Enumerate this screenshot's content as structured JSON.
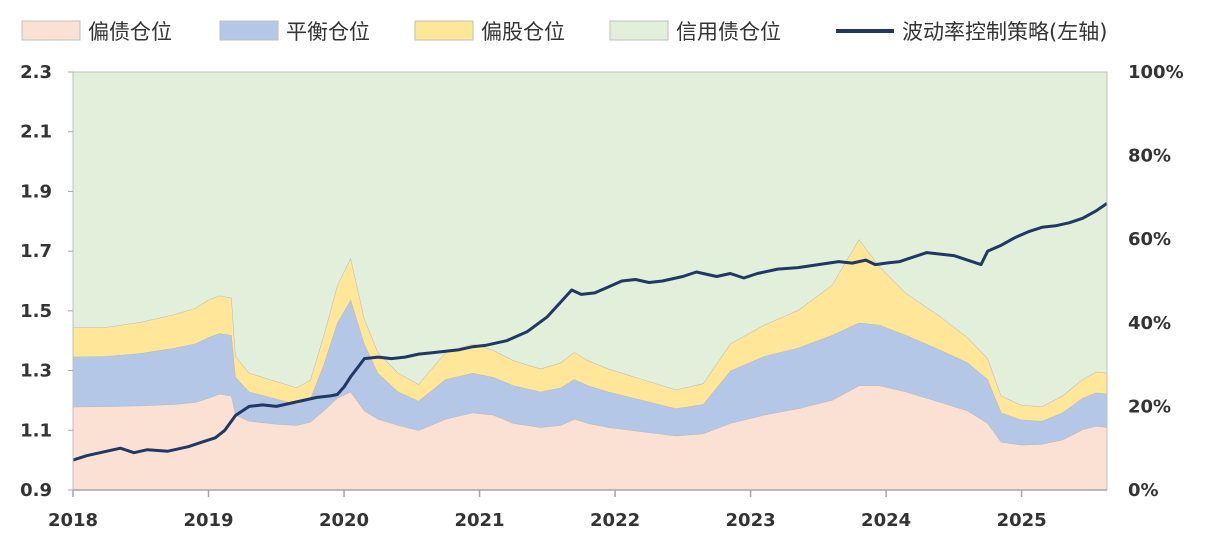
{
  "chart_data": {
    "type": "area",
    "title": "",
    "xlabel": "",
    "ylabel": "",
    "x_range": [
      2018.0,
      2025.63
    ],
    "x_ticks": [
      "2018",
      "2019",
      "2020",
      "2021",
      "2022",
      "2023",
      "2024",
      "2025"
    ],
    "left_axis": {
      "ylim": [
        0.9,
        2.3
      ],
      "ticks": [
        "0.9",
        "1.1",
        "1.3",
        "1.5",
        "1.7",
        "1.9",
        "2.1",
        "2.3"
      ]
    },
    "right_axis": {
      "ylim": [
        0,
        100
      ],
      "ticks": [
        "0%",
        "20%",
        "40%",
        "60%",
        "80%",
        "100%"
      ]
    },
    "grid": false,
    "legend_position": "top",
    "stack_order": [
      "偏债仓位",
      "平衡仓位",
      "偏股仓位",
      "信用债仓位"
    ],
    "area_series": [
      {
        "name": "偏债仓位",
        "color": "#fbe1d3",
        "points": [
          [
            2018.0,
            19.9
          ],
          [
            2018.25,
            20.0
          ],
          [
            2018.5,
            20.2
          ],
          [
            2018.75,
            20.5
          ],
          [
            2018.9,
            21.0
          ],
          [
            2019.0,
            22.0
          ],
          [
            2019.08,
            23.0
          ],
          [
            2019.17,
            22.5
          ],
          [
            2019.2,
            18.0
          ],
          [
            2019.3,
            16.5
          ],
          [
            2019.5,
            15.8
          ],
          [
            2019.65,
            15.5
          ],
          [
            2019.75,
            16.3
          ],
          [
            2019.85,
            19.0
          ],
          [
            2019.95,
            22.0
          ],
          [
            2020.05,
            23.5
          ],
          [
            2020.15,
            19.0
          ],
          [
            2020.25,
            17.0
          ],
          [
            2020.4,
            15.5
          ],
          [
            2020.55,
            14.3
          ],
          [
            2020.75,
            17.0
          ],
          [
            2020.95,
            18.5
          ],
          [
            2021.1,
            18.0
          ],
          [
            2021.25,
            16.0
          ],
          [
            2021.45,
            15.0
          ],
          [
            2021.6,
            15.5
          ],
          [
            2021.7,
            17.0
          ],
          [
            2021.8,
            16.0
          ],
          [
            2021.95,
            15.0
          ],
          [
            2022.2,
            14.0
          ],
          [
            2022.45,
            13.0
          ],
          [
            2022.65,
            13.5
          ],
          [
            2022.85,
            16.0
          ],
          [
            2023.1,
            18.0
          ],
          [
            2023.35,
            19.5
          ],
          [
            2023.6,
            21.5
          ],
          [
            2023.8,
            25.0
          ],
          [
            2023.95,
            25.0
          ],
          [
            2024.15,
            23.5
          ],
          [
            2024.4,
            21.0
          ],
          [
            2024.6,
            19.0
          ],
          [
            2024.75,
            16.0
          ],
          [
            2024.85,
            11.5
          ],
          [
            2025.0,
            10.8
          ],
          [
            2025.15,
            11.0
          ],
          [
            2025.3,
            12.0
          ],
          [
            2025.45,
            14.5
          ],
          [
            2025.55,
            15.3
          ],
          [
            2025.63,
            15.0
          ]
        ]
      },
      {
        "name": "平衡仓位",
        "color": "#b4c7e7",
        "points": [
          [
            2018.0,
            12.0
          ],
          [
            2018.25,
            12.0
          ],
          [
            2018.5,
            12.5
          ],
          [
            2018.75,
            13.5
          ],
          [
            2018.9,
            14.0
          ],
          [
            2019.0,
            14.5
          ],
          [
            2019.08,
            14.5
          ],
          [
            2019.17,
            14.5
          ],
          [
            2019.2,
            9.0
          ],
          [
            2019.3,
            7.0
          ],
          [
            2019.5,
            6.0
          ],
          [
            2019.65,
            5.0
          ],
          [
            2019.75,
            5.5
          ],
          [
            2019.85,
            11.0
          ],
          [
            2019.95,
            18.0
          ],
          [
            2020.05,
            22.0
          ],
          [
            2020.15,
            16.0
          ],
          [
            2020.25,
            11.0
          ],
          [
            2020.4,
            8.0
          ],
          [
            2020.55,
            7.0
          ],
          [
            2020.75,
            9.5
          ],
          [
            2020.95,
            9.5
          ],
          [
            2021.1,
            9.0
          ],
          [
            2021.25,
            9.0
          ],
          [
            2021.45,
            8.5
          ],
          [
            2021.6,
            9.0
          ],
          [
            2021.7,
            9.5
          ],
          [
            2021.8,
            9.0
          ],
          [
            2021.95,
            8.5
          ],
          [
            2022.2,
            7.5
          ],
          [
            2022.45,
            6.5
          ],
          [
            2022.65,
            7.0
          ],
          [
            2022.85,
            12.5
          ],
          [
            2023.1,
            14.0
          ],
          [
            2023.35,
            14.5
          ],
          [
            2023.6,
            15.5
          ],
          [
            2023.8,
            15.0
          ],
          [
            2023.95,
            14.5
          ],
          [
            2024.15,
            13.5
          ],
          [
            2024.4,
            12.5
          ],
          [
            2024.6,
            11.5
          ],
          [
            2024.75,
            10.5
          ],
          [
            2024.85,
            7.0
          ],
          [
            2025.0,
            6.0
          ],
          [
            2025.15,
            5.5
          ],
          [
            2025.3,
            6.5
          ],
          [
            2025.45,
            7.5
          ],
          [
            2025.55,
            8.0
          ],
          [
            2025.63,
            8.0
          ]
        ]
      },
      {
        "name": "偏股仓位",
        "color": "#ffe699",
        "points": [
          [
            2018.0,
            7.0
          ],
          [
            2018.25,
            7.0
          ],
          [
            2018.5,
            7.5
          ],
          [
            2018.75,
            8.0
          ],
          [
            2018.9,
            8.5
          ],
          [
            2019.0,
            9.0
          ],
          [
            2019.08,
            9.0
          ],
          [
            2019.17,
            9.0
          ],
          [
            2019.2,
            5.0
          ],
          [
            2019.3,
            4.5
          ],
          [
            2019.5,
            4.2
          ],
          [
            2019.65,
            4.0
          ],
          [
            2019.75,
            4.5
          ],
          [
            2019.85,
            7.0
          ],
          [
            2019.95,
            9.0
          ],
          [
            2020.05,
            10.0
          ],
          [
            2020.15,
            6.0
          ],
          [
            2020.25,
            5.0
          ],
          [
            2020.4,
            4.5
          ],
          [
            2020.55,
            4.0
          ],
          [
            2020.75,
            6.5
          ],
          [
            2020.95,
            7.0
          ],
          [
            2021.1,
            6.5
          ],
          [
            2021.25,
            6.0
          ],
          [
            2021.45,
            5.5
          ],
          [
            2021.6,
            6.0
          ],
          [
            2021.7,
            6.5
          ],
          [
            2021.8,
            6.0
          ],
          [
            2021.95,
            5.5
          ],
          [
            2022.2,
            5.0
          ],
          [
            2022.45,
            4.5
          ],
          [
            2022.65,
            5.0
          ],
          [
            2022.85,
            6.5
          ],
          [
            2023.1,
            7.5
          ],
          [
            2023.35,
            9.0
          ],
          [
            2023.6,
            12.0
          ],
          [
            2023.8,
            20.0
          ],
          [
            2023.95,
            14.0
          ],
          [
            2024.15,
            10.0
          ],
          [
            2024.4,
            8.0
          ],
          [
            2024.6,
            6.0
          ],
          [
            2024.75,
            5.0
          ],
          [
            2024.85,
            4.0
          ],
          [
            2025.0,
            3.5
          ],
          [
            2025.15,
            3.5
          ],
          [
            2025.3,
            4.0
          ],
          [
            2025.45,
            4.5
          ],
          [
            2025.55,
            5.0
          ],
          [
            2025.63,
            5.0
          ]
        ]
      },
      {
        "name": "信用债仓位",
        "color": "#e2efda",
        "fill_to_top": true
      }
    ],
    "line_series": {
      "name": "波动率控制策略(左轴)",
      "axis": "left",
      "color": "#1f3864",
      "points": [
        [
          2018.0,
          1.0
        ],
        [
          2018.1,
          1.015
        ],
        [
          2018.25,
          1.03
        ],
        [
          2018.35,
          1.04
        ],
        [
          2018.45,
          1.025
        ],
        [
          2018.55,
          1.035
        ],
        [
          2018.7,
          1.03
        ],
        [
          2018.85,
          1.045
        ],
        [
          2018.95,
          1.06
        ],
        [
          2019.05,
          1.075
        ],
        [
          2019.12,
          1.1
        ],
        [
          2019.2,
          1.15
        ],
        [
          2019.3,
          1.18
        ],
        [
          2019.4,
          1.185
        ],
        [
          2019.5,
          1.18
        ],
        [
          2019.6,
          1.19
        ],
        [
          2019.7,
          1.2
        ],
        [
          2019.8,
          1.21
        ],
        [
          2019.9,
          1.215
        ],
        [
          2019.95,
          1.22
        ],
        [
          2020.0,
          1.245
        ],
        [
          2020.05,
          1.28
        ],
        [
          2020.1,
          1.31
        ],
        [
          2020.15,
          1.34
        ],
        [
          2020.25,
          1.345
        ],
        [
          2020.35,
          1.34
        ],
        [
          2020.45,
          1.345
        ],
        [
          2020.55,
          1.355
        ],
        [
          2020.65,
          1.36
        ],
        [
          2020.75,
          1.365
        ],
        [
          2020.85,
          1.37
        ],
        [
          2020.95,
          1.38
        ],
        [
          2021.05,
          1.385
        ],
        [
          2021.2,
          1.4
        ],
        [
          2021.35,
          1.43
        ],
        [
          2021.5,
          1.48
        ],
        [
          2021.6,
          1.53
        ],
        [
          2021.68,
          1.57
        ],
        [
          2021.75,
          1.555
        ],
        [
          2021.85,
          1.56
        ],
        [
          2021.95,
          1.58
        ],
        [
          2022.05,
          1.6
        ],
        [
          2022.15,
          1.605
        ],
        [
          2022.25,
          1.595
        ],
        [
          2022.35,
          1.6
        ],
        [
          2022.5,
          1.615
        ],
        [
          2022.6,
          1.63
        ],
        [
          2022.75,
          1.615
        ],
        [
          2022.85,
          1.625
        ],
        [
          2022.95,
          1.61
        ],
        [
          2023.05,
          1.625
        ],
        [
          2023.2,
          1.64
        ],
        [
          2023.35,
          1.645
        ],
        [
          2023.5,
          1.655
        ],
        [
          2023.65,
          1.665
        ],
        [
          2023.75,
          1.66
        ],
        [
          2023.85,
          1.67
        ],
        [
          2023.92,
          1.655
        ],
        [
          2024.0,
          1.66
        ],
        [
          2024.1,
          1.665
        ],
        [
          2024.2,
          1.68
        ],
        [
          2024.3,
          1.695
        ],
        [
          2024.4,
          1.69
        ],
        [
          2024.5,
          1.685
        ],
        [
          2024.6,
          1.67
        ],
        [
          2024.7,
          1.655
        ],
        [
          2024.75,
          1.7
        ],
        [
          2024.85,
          1.72
        ],
        [
          2024.95,
          1.745
        ],
        [
          2025.05,
          1.765
        ],
        [
          2025.15,
          1.78
        ],
        [
          2025.25,
          1.785
        ],
        [
          2025.35,
          1.795
        ],
        [
          2025.45,
          1.81
        ],
        [
          2025.55,
          1.835
        ],
        [
          2025.63,
          1.86
        ]
      ]
    },
    "legend_entries": [
      "偏债仓位",
      "平衡仓位",
      "偏股仓位",
      "信用债仓位",
      "波动率控制策略(左轴)"
    ]
  }
}
